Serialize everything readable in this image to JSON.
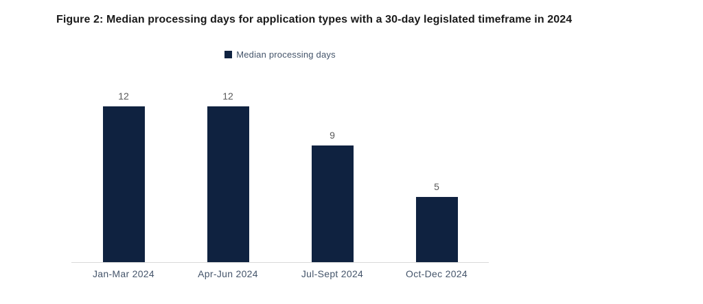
{
  "figure": {
    "title": "Figure 2: Median processing days for application types with a 30-day legislated timeframe in 2024"
  },
  "legend": {
    "label": "Median processing days"
  },
  "chart_data": {
    "type": "bar",
    "title": "Figure 2: Median processing days for application types with a 30-day legislated timeframe in 2024",
    "categories": [
      "Jan-Mar 2024",
      "Apr-Jun 2024",
      "Jul-Sept 2024",
      "Oct-Dec 2024"
    ],
    "series": [
      {
        "name": "Median processing days",
        "values": [
          12,
          12,
          9,
          5
        ]
      }
    ],
    "xlabel": "",
    "ylabel": "",
    "ylim": [
      0,
      12
    ],
    "grid": false,
    "data_labels": true,
    "legend_position": "top-center",
    "y_axis_visible": false,
    "colors": {
      "bar": "#0f2240",
      "value_label": "#595959",
      "category_label": "#44546a",
      "legend_text": "#44546a",
      "axis_line": "#d9d9d9",
      "title": "#1a1a1a"
    }
  }
}
